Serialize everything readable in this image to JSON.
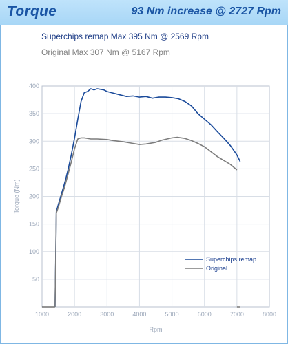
{
  "header": {
    "title": "Torque",
    "headline": "93 Nm increase @ 2727 Rpm"
  },
  "info": {
    "line1": "Superchips remap Max 395 Nm @ 2569 Rpm",
    "line2": "Original Max 307 Nm @ 5167 Rpm"
  },
  "colors": {
    "header_bg": "#a7d6f6",
    "header_text": "#1a55a4",
    "remap_line": "#1a4a9a",
    "original_line": "#7c7c7c",
    "grid": "#d8dee6",
    "frame": "#7fb7e4"
  },
  "chart_data": {
    "type": "line",
    "xlabel": "Rpm",
    "ylabel": "Torque (Nm)",
    "xlim": [
      1000,
      8000
    ],
    "ylim": [
      0,
      400
    ],
    "x_ticks": [
      1000,
      2000,
      3000,
      4000,
      5000,
      6000,
      7000,
      8000
    ],
    "y_ticks": [
      50,
      100,
      150,
      200,
      250,
      300,
      350,
      400
    ],
    "grid": true,
    "legend_position": "bottom-right",
    "series": [
      {
        "name": "Superchips remap",
        "color": "#1a4a9a",
        "points": [
          [
            1400,
            0
          ],
          [
            1420,
            85
          ],
          [
            1440,
            172
          ],
          [
            1500,
            185
          ],
          [
            1600,
            205
          ],
          [
            1700,
            225
          ],
          [
            1800,
            248
          ],
          [
            1900,
            275
          ],
          [
            2000,
            305
          ],
          [
            2100,
            340
          ],
          [
            2200,
            372
          ],
          [
            2300,
            388
          ],
          [
            2400,
            390
          ],
          [
            2500,
            395
          ],
          [
            2600,
            393
          ],
          [
            2700,
            395
          ],
          [
            2800,
            394
          ],
          [
            2900,
            393
          ],
          [
            3000,
            390
          ],
          [
            3200,
            387
          ],
          [
            3400,
            384
          ],
          [
            3600,
            381
          ],
          [
            3800,
            382
          ],
          [
            4000,
            380
          ],
          [
            4200,
            381
          ],
          [
            4400,
            378
          ],
          [
            4600,
            380
          ],
          [
            4800,
            380
          ],
          [
            5000,
            379
          ],
          [
            5200,
            377
          ],
          [
            5400,
            372
          ],
          [
            5600,
            364
          ],
          [
            5800,
            350
          ],
          [
            6000,
            340
          ],
          [
            6200,
            330
          ],
          [
            6400,
            317
          ],
          [
            6600,
            305
          ],
          [
            6800,
            292
          ],
          [
            7000,
            275
          ],
          [
            7100,
            263
          ]
        ]
      },
      {
        "name": "Original",
        "color": "#7c7c7c",
        "points": [
          [
            1400,
            0
          ],
          [
            1420,
            80
          ],
          [
            1440,
            170
          ],
          [
            1500,
            180
          ],
          [
            1600,
            200
          ],
          [
            1700,
            218
          ],
          [
            1800,
            240
          ],
          [
            1900,
            262
          ],
          [
            2000,
            286
          ],
          [
            2100,
            304
          ],
          [
            2200,
            306
          ],
          [
            2300,
            306
          ],
          [
            2500,
            304
          ],
          [
            2700,
            304
          ],
          [
            3000,
            303
          ],
          [
            3200,
            301
          ],
          [
            3500,
            299
          ],
          [
            3800,
            296
          ],
          [
            4000,
            294
          ],
          [
            4200,
            295
          ],
          [
            4500,
            298
          ],
          [
            4700,
            302
          ],
          [
            5000,
            306
          ],
          [
            5167,
            307
          ],
          [
            5400,
            305
          ],
          [
            5600,
            301
          ],
          [
            5800,
            296
          ],
          [
            6000,
            290
          ],
          [
            6200,
            281
          ],
          [
            6400,
            272
          ],
          [
            6600,
            265
          ],
          [
            6800,
            258
          ],
          [
            7000,
            248
          ]
        ]
      }
    ]
  }
}
